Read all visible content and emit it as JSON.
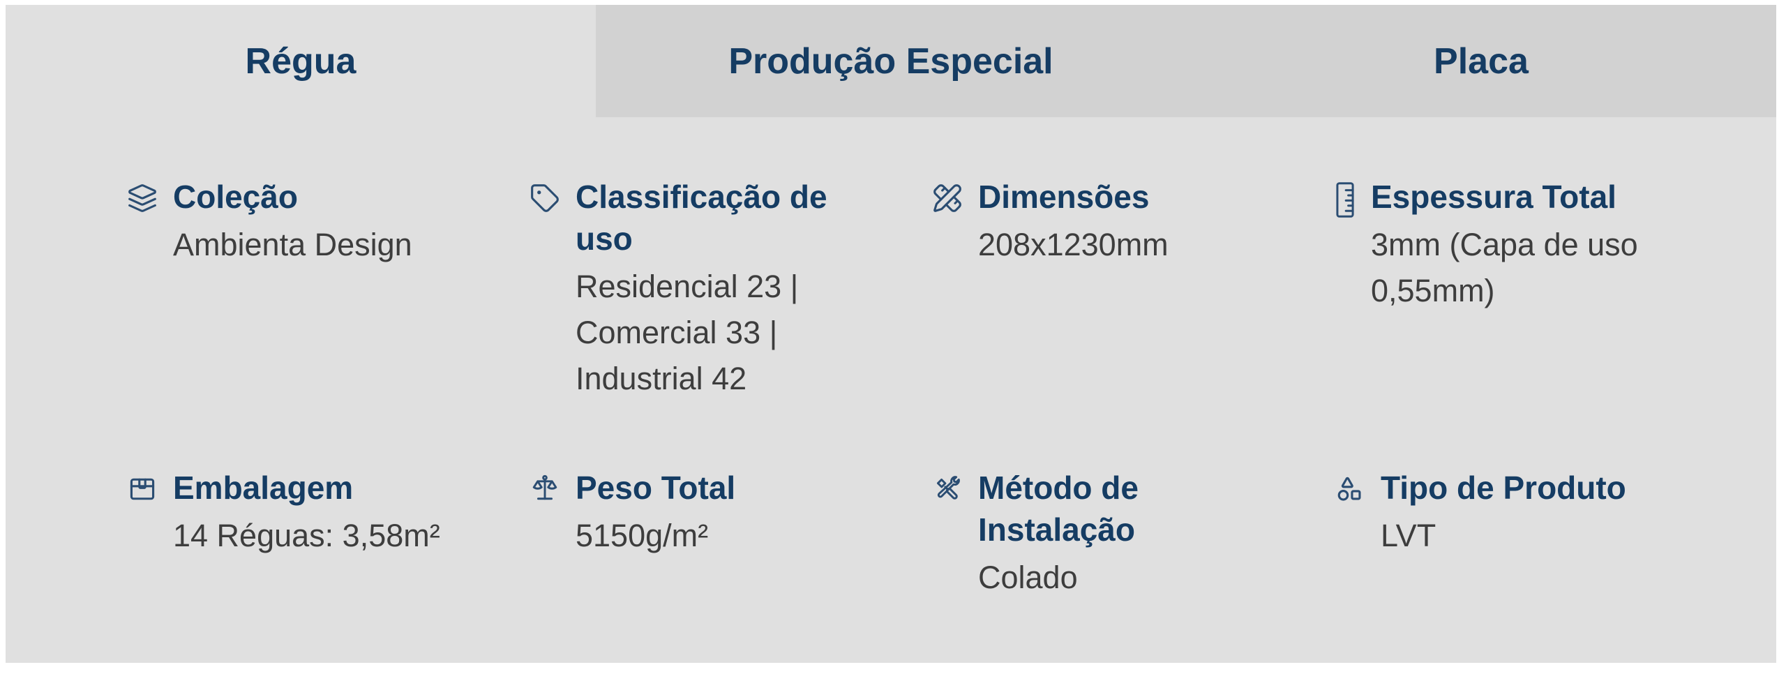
{
  "colors": {
    "panel_bg": "#e0e0e0",
    "inactive_tab_bg": "#d2d2d2",
    "navy_text": "#153c63",
    "icon_blue": "#2b4d72",
    "value_text": "#3d3d3d",
    "page_bg": "#ffffff"
  },
  "tabs": [
    {
      "id": "regua",
      "label": "Régua",
      "active": true
    },
    {
      "id": "producao-especial",
      "label": "Produção Especial",
      "active": false
    },
    {
      "id": "placa",
      "label": "Placa",
      "active": false
    }
  ],
  "specs": [
    {
      "id": "colecao",
      "icon": "layers-icon",
      "label": "Coleção",
      "value": "Ambienta Design"
    },
    {
      "id": "classificacao-de-uso",
      "icon": "tag-icon",
      "label": "Classificação de uso",
      "value": "Residencial 23 | Comercial 33 | Industrial 42"
    },
    {
      "id": "dimensoes",
      "icon": "pencil-ruler-icon",
      "label": "Dimensões",
      "value": "208x1230mm"
    },
    {
      "id": "espessura-total",
      "icon": "ruler-icon",
      "label": "Espessura Total",
      "value": "3mm (Capa de uso 0,55mm)"
    },
    {
      "id": "embalagem",
      "icon": "package-icon",
      "label": "Embalagem",
      "value": "14 Réguas: 3,58m²"
    },
    {
      "id": "peso-total",
      "icon": "scale-icon",
      "label": "Peso Total",
      "value": "5150g/m²"
    },
    {
      "id": "metodo-de-instalacao",
      "icon": "tools-icon",
      "label": "Método de Instalação",
      "value": "Colado"
    },
    {
      "id": "tipo-de-produto",
      "icon": "shapes-icon",
      "label": "Tipo de Produto",
      "value": "LVT"
    }
  ]
}
